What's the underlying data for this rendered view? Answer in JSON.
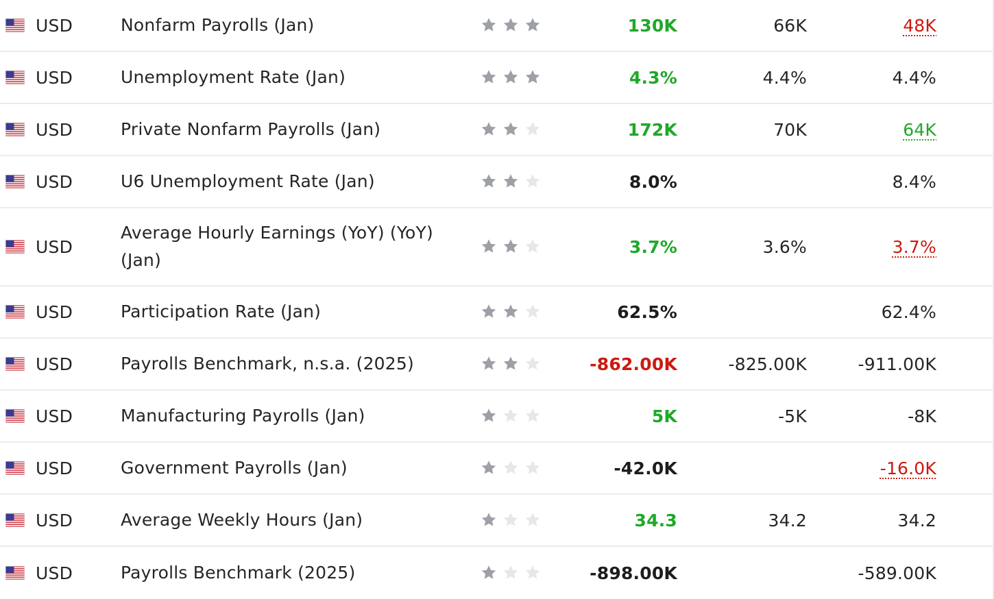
{
  "colors": {
    "positive": "#1fa82a",
    "negative": "#cc1a0f",
    "neutral": "#1d1d1f",
    "star_on": "#9da0a6",
    "star_off": "#e6e7ea",
    "divider": "#e9ecef"
  },
  "events": [
    {
      "flag_icon": "us-flag-icon",
      "currency": "USD",
      "event": "Nonfarm Payrolls (Jan)",
      "importance": 3,
      "actual": "130K",
      "actual_status": "up",
      "forecast": "66K",
      "previous": "48K",
      "previous_revised": "down"
    },
    {
      "flag_icon": "us-flag-icon",
      "currency": "USD",
      "event": "Unemployment Rate (Jan)",
      "importance": 3,
      "actual": "4.3%",
      "actual_status": "up",
      "forecast": "4.4%",
      "previous": "4.4%",
      "previous_revised": ""
    },
    {
      "flag_icon": "us-flag-icon",
      "currency": "USD",
      "event": "Private Nonfarm Payrolls (Jan)",
      "importance": 2,
      "actual": "172K",
      "actual_status": "up",
      "forecast": "70K",
      "previous": "64K",
      "previous_revised": "up"
    },
    {
      "flag_icon": "us-flag-icon",
      "currency": "USD",
      "event": "U6 Unemployment Rate (Jan)",
      "importance": 2,
      "actual": "8.0%",
      "actual_status": "neutral",
      "forecast": "",
      "previous": "8.4%",
      "previous_revised": ""
    },
    {
      "flag_icon": "us-flag-icon",
      "currency": "USD",
      "event": "Average Hourly Earnings (YoY) (YoY) (Jan)",
      "importance": 2,
      "actual": "3.7%",
      "actual_status": "up",
      "forecast": "3.6%",
      "previous": "3.7%",
      "previous_revised": "down"
    },
    {
      "flag_icon": "us-flag-icon",
      "currency": "USD",
      "event": "Participation Rate (Jan)",
      "importance": 2,
      "actual": "62.5%",
      "actual_status": "neutral",
      "forecast": "",
      "previous": "62.4%",
      "previous_revised": ""
    },
    {
      "flag_icon": "us-flag-icon",
      "currency": "USD",
      "event": "Payrolls Benchmark, n.s.a. (2025)",
      "importance": 2,
      "actual": "-862.00K",
      "actual_status": "down",
      "forecast": "-825.00K",
      "previous": "-911.00K",
      "previous_revised": ""
    },
    {
      "flag_icon": "us-flag-icon",
      "currency": "USD",
      "event": "Manufacturing Payrolls (Jan)",
      "importance": 1,
      "actual": "5K",
      "actual_status": "up",
      "forecast": "-5K",
      "previous": "-8K",
      "previous_revised": ""
    },
    {
      "flag_icon": "us-flag-icon",
      "currency": "USD",
      "event": "Government Payrolls (Jan)",
      "importance": 1,
      "actual": "-42.0K",
      "actual_status": "neutral",
      "forecast": "",
      "previous": "-16.0K",
      "previous_revised": "down"
    },
    {
      "flag_icon": "us-flag-icon",
      "currency": "USD",
      "event": "Average Weekly Hours (Jan)",
      "importance": 1,
      "actual": "34.3",
      "actual_status": "up",
      "forecast": "34.2",
      "previous": "34.2",
      "previous_revised": ""
    },
    {
      "flag_icon": "us-flag-icon",
      "currency": "USD",
      "event": "Payrolls Benchmark (2025)",
      "importance": 1,
      "actual": "-898.00K",
      "actual_status": "neutral",
      "forecast": "",
      "previous": "-589.00K",
      "previous_revised": ""
    }
  ]
}
